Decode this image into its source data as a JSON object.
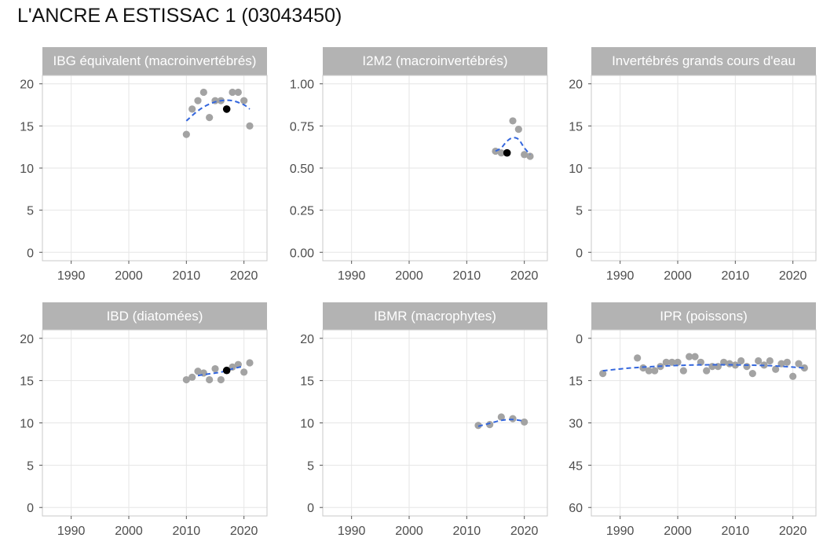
{
  "title": "L'ANCRE A ESTISSAC 1 (03043450)",
  "colors": {
    "point": "#a3a3a3",
    "highlight": "#000000",
    "trend": "#3366dd",
    "strip": "#b3b3b3",
    "strip_text": "#ffffff",
    "grid": "#e6e6e6",
    "frame": "#c8c8c8",
    "tick_label": "#4d4d4d"
  },
  "chart_data": [
    {
      "name": "ibg",
      "type": "scatter",
      "title": "IBG équivalent (macroinvertébrés)",
      "xlim": [
        1985,
        2024
      ],
      "ylim": [
        -1,
        21
      ],
      "y_reversed": false,
      "x_ticks": [
        1990,
        2000,
        2010,
        2020
      ],
      "y_ticks": [
        0,
        5,
        10,
        15,
        20
      ],
      "y_tick_labels": [
        "0",
        "5",
        "10",
        "15",
        "20"
      ],
      "grid": true,
      "points": [
        [
          2010,
          14
        ],
        [
          2011,
          17
        ],
        [
          2012,
          18
        ],
        [
          2013,
          19
        ],
        [
          2014,
          16
        ],
        [
          2015,
          18
        ],
        [
          2016,
          18
        ],
        [
          2018,
          19
        ],
        [
          2019,
          19
        ],
        [
          2020,
          18
        ],
        [
          2021,
          15
        ]
      ],
      "highlight": [
        [
          2017,
          17
        ]
      ],
      "trend": [
        [
          2010,
          15.6
        ],
        [
          2012,
          16.8
        ],
        [
          2014,
          17.6
        ],
        [
          2016,
          18.0
        ],
        [
          2018,
          18.0
        ],
        [
          2020,
          17.5
        ],
        [
          2021,
          17.0
        ]
      ]
    },
    {
      "name": "i2m2",
      "type": "scatter",
      "title": "I2M2 (macroinvertébrés)",
      "xlim": [
        1985,
        2024
      ],
      "ylim": [
        -0.05,
        1.05
      ],
      "y_reversed": false,
      "x_ticks": [
        1990,
        2000,
        2010,
        2020
      ],
      "y_ticks": [
        0,
        0.25,
        0.5,
        0.75,
        1
      ],
      "y_tick_labels": [
        "0.00",
        "0.25",
        "0.50",
        "0.75",
        "1.00"
      ],
      "grid": true,
      "points": [
        [
          2015,
          0.6
        ],
        [
          2016,
          0.59
        ],
        [
          2018,
          0.78
        ],
        [
          2019,
          0.73
        ],
        [
          2020,
          0.58
        ],
        [
          2021,
          0.57
        ]
      ],
      "highlight": [
        [
          2017,
          0.59
        ]
      ],
      "trend": [
        [
          2015,
          0.6
        ],
        [
          2016,
          0.62
        ],
        [
          2017,
          0.66
        ],
        [
          2018,
          0.68
        ],
        [
          2019,
          0.67
        ],
        [
          2020,
          0.62
        ],
        [
          2021,
          0.58
        ]
      ]
    },
    {
      "name": "invertebres",
      "type": "scatter",
      "title": "Invertébrés grands cours d'eau",
      "xlim": [
        1985,
        2024
      ],
      "ylim": [
        -1,
        21
      ],
      "y_reversed": false,
      "x_ticks": [
        1990,
        2000,
        2010,
        2020
      ],
      "y_ticks": [
        0,
        5,
        10,
        15,
        20
      ],
      "y_tick_labels": [
        "0",
        "5",
        "10",
        "15",
        "20"
      ],
      "grid": true,
      "points": [],
      "highlight": [],
      "trend": []
    },
    {
      "name": "ibd",
      "type": "scatter",
      "title": "IBD (diatomées)",
      "xlim": [
        1985,
        2024
      ],
      "ylim": [
        -1,
        21
      ],
      "y_reversed": false,
      "x_ticks": [
        1990,
        2000,
        2010,
        2020
      ],
      "y_ticks": [
        0,
        5,
        10,
        15,
        20
      ],
      "y_tick_labels": [
        "0",
        "5",
        "10",
        "15",
        "20"
      ],
      "grid": true,
      "points": [
        [
          2010,
          15.1
        ],
        [
          2011,
          15.4
        ],
        [
          2012,
          16.1
        ],
        [
          2013,
          15.9
        ],
        [
          2014,
          15.1
        ],
        [
          2015,
          16.4
        ],
        [
          2016,
          15.1
        ],
        [
          2018,
          16.6
        ],
        [
          2019,
          16.9
        ],
        [
          2020,
          16.0
        ],
        [
          2021,
          17.1
        ]
      ],
      "highlight": [
        [
          2017,
          16.2
        ]
      ],
      "trend": [
        [
          2012,
          15.6
        ],
        [
          2014,
          15.8
        ],
        [
          2016,
          16.0
        ],
        [
          2018,
          16.4
        ],
        [
          2020,
          16.7
        ]
      ]
    },
    {
      "name": "ibmr",
      "type": "scatter",
      "title": "IBMR (macrophytes)",
      "xlim": [
        1985,
        2024
      ],
      "ylim": [
        -1,
        21
      ],
      "y_reversed": false,
      "x_ticks": [
        1990,
        2000,
        2010,
        2020
      ],
      "y_ticks": [
        0,
        5,
        10,
        15,
        20
      ],
      "y_tick_labels": [
        "0",
        "5",
        "10",
        "15",
        "20"
      ],
      "grid": true,
      "points": [
        [
          2012,
          9.7
        ],
        [
          2014,
          9.8
        ],
        [
          2016,
          10.7
        ],
        [
          2018,
          10.5
        ],
        [
          2020,
          10.1
        ]
      ],
      "highlight": [],
      "trend": [
        [
          2012,
          9.6
        ],
        [
          2014,
          9.95
        ],
        [
          2016,
          10.3
        ],
        [
          2018,
          10.4
        ],
        [
          2020,
          10.2
        ]
      ]
    },
    {
      "name": "ipr",
      "type": "scatter",
      "title": "IPR (poissons)",
      "xlim": [
        1985,
        2024
      ],
      "ylim": [
        -3,
        63
      ],
      "y_reversed": true,
      "x_ticks": [
        1990,
        2000,
        2010,
        2020
      ],
      "y_ticks": [
        0,
        15,
        30,
        45,
        60
      ],
      "y_tick_labels": [
        "0",
        "15",
        "30",
        "45",
        "60"
      ],
      "grid": true,
      "points": [
        [
          1987,
          12.5
        ],
        [
          1993,
          7
        ],
        [
          1994,
          10.5
        ],
        [
          1995,
          11.5
        ],
        [
          1996,
          11.5
        ],
        [
          1997,
          10
        ],
        [
          1998,
          8.5
        ],
        [
          1999,
          8.5
        ],
        [
          2000,
          8.5
        ],
        [
          2001,
          11.5
        ],
        [
          2002,
          6.5
        ],
        [
          2003,
          6.5
        ],
        [
          2004,
          8.5
        ],
        [
          2005,
          11.5
        ],
        [
          2006,
          10
        ],
        [
          2007,
          10
        ],
        [
          2008,
          8.5
        ],
        [
          2009,
          9
        ],
        [
          2010,
          9.5
        ],
        [
          2011,
          8
        ],
        [
          2012,
          10
        ],
        [
          2013,
          12.5
        ],
        [
          2014,
          8
        ],
        [
          2015,
          9.5
        ],
        [
          2016,
          8
        ],
        [
          2017,
          11
        ],
        [
          2018,
          9
        ],
        [
          2019,
          8.5
        ],
        [
          2020,
          13.5
        ],
        [
          2021,
          9
        ],
        [
          2022,
          10.5
        ]
      ],
      "highlight": [],
      "trend": [
        [
          1987,
          11.5
        ],
        [
          1992,
          10.5
        ],
        [
          1997,
          9.9
        ],
        [
          2002,
          9.5
        ],
        [
          2007,
          9.4
        ],
        [
          2012,
          9.5
        ],
        [
          2017,
          9.8
        ],
        [
          2022,
          10.5
        ]
      ]
    }
  ]
}
